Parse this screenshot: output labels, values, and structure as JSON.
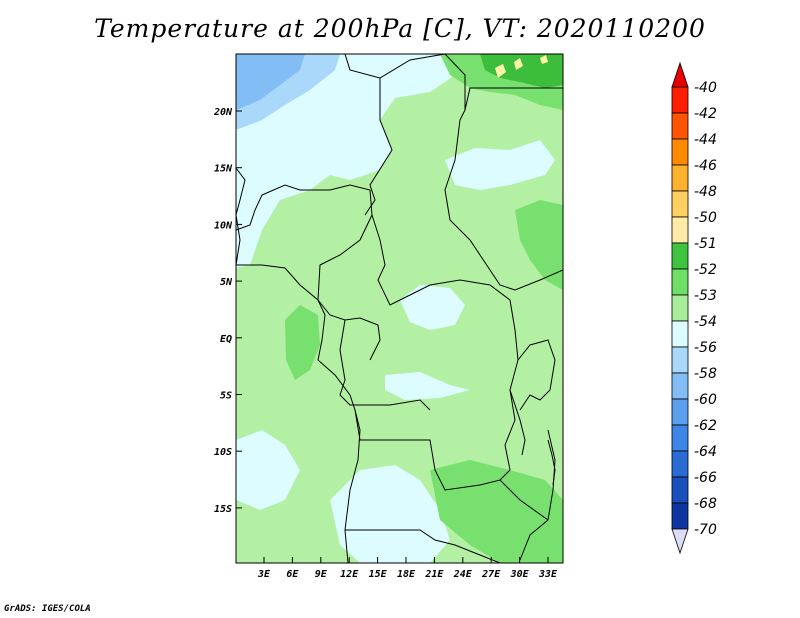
{
  "title": "Temperature at 200hPa [C], VT: 2020110200",
  "credit": "GrADS: IGES/COLA",
  "colors": {
    "c_le_neg53": "#b4f0a4",
    "c_neg54": "#dcfcff",
    "c_neg56": "#aad8fa",
    "c_neg58": "#82bef5",
    "c_neg52": "#78e06e",
    "c_neg51": "#3cbe3c",
    "c_neg50": "#fff5a8",
    "country_border": "#000000"
  },
  "map": {
    "lat_labels": [
      "20N",
      "15N",
      "10N",
      "5N",
      "EQ",
      "5S",
      "10S",
      "15S"
    ],
    "lon_labels": [
      "3E",
      "6E",
      "9E",
      "12E",
      "15E",
      "18E",
      "21E",
      "24E",
      "27E",
      "30E",
      "33E"
    ]
  },
  "legend": {
    "labels": [
      "-40",
      "-42",
      "-44",
      "-46",
      "-48",
      "-50",
      "-51",
      "-52",
      "-53",
      "-54",
      "-56",
      "-58",
      "-60",
      "-62",
      "-64",
      "-66",
      "-68",
      "-70"
    ],
    "colors": [
      "#ff1e00",
      "#ff5500",
      "#ff8a00",
      "#ffb22d",
      "#ffd060",
      "#ffeba6",
      "#3ec43e",
      "#6fe066",
      "#a8ee9a",
      "#dcfcff",
      "#aad8fa",
      "#82bef5",
      "#5ca0f0",
      "#3c87e6",
      "#2a6cd4",
      "#1a4fbe",
      "#0e36a0",
      "#0a1478"
    ],
    "top_tip_color": "#e60000",
    "bottom_tip_color": "#dcdcf8"
  }
}
